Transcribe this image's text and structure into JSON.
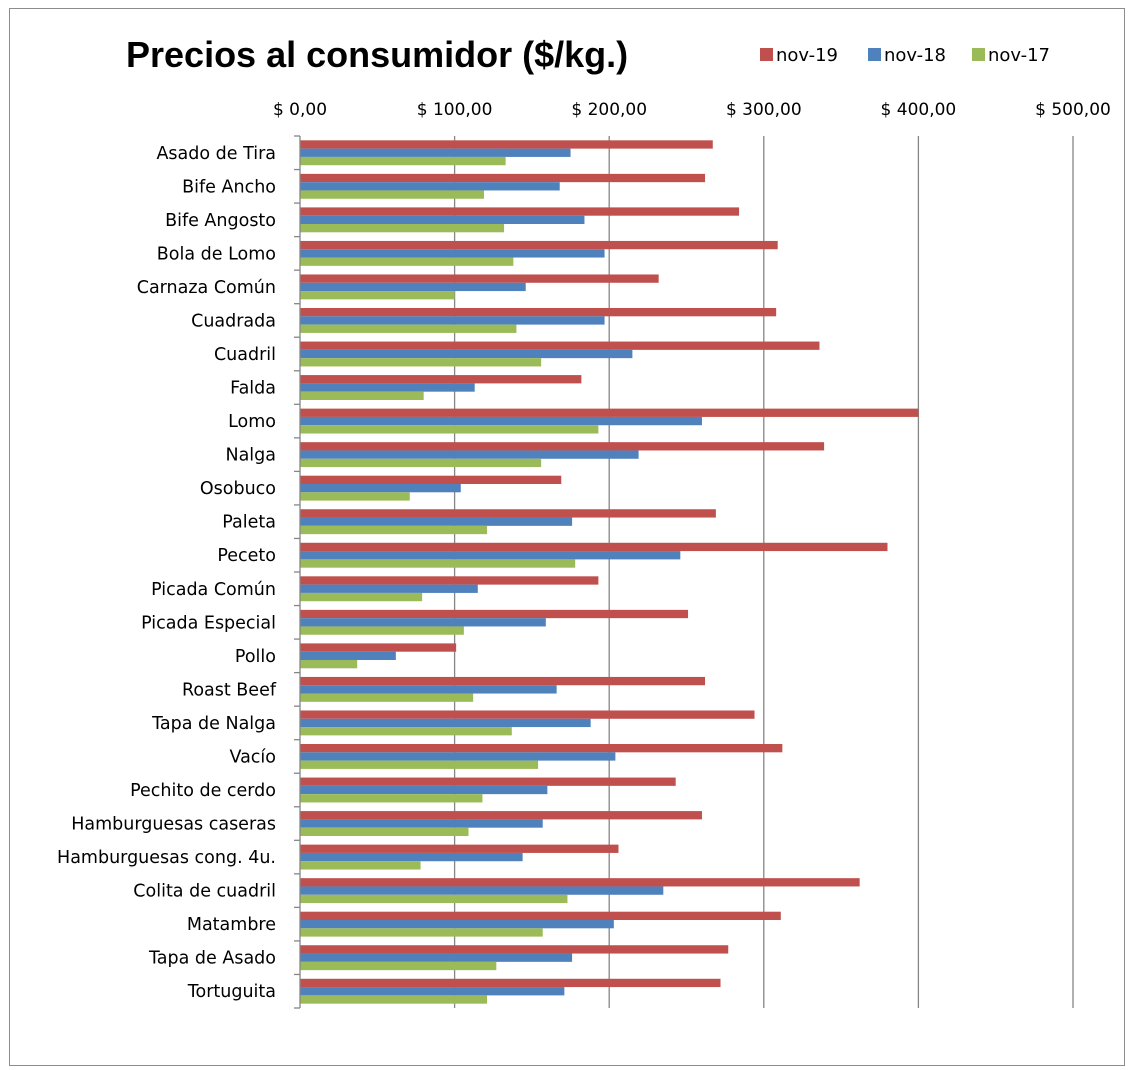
{
  "chart_data": {
    "type": "bar",
    "orientation": "horizontal",
    "title": "Precios al consumidor ($/kg.)",
    "xlabel": "",
    "ylabel": "",
    "xlim": [
      0,
      500
    ],
    "x_ticks": [
      "$ 0,00",
      "$ 100,00",
      "$ 200,00",
      "$ 300,00",
      "$ 400,00",
      "$ 500,00"
    ],
    "x_tick_values": [
      0,
      100,
      200,
      300,
      400,
      500
    ],
    "axis_position": "top",
    "grid": "vertical major gridlines",
    "legend_position": "top-right",
    "categories": [
      "Asado de Tira",
      "Bife Ancho",
      "Bife Angosto",
      "Bola de Lomo",
      "Carnaza Común",
      "Cuadrada",
      "Cuadril",
      "Falda",
      "Lomo",
      "Nalga",
      "Osobuco",
      "Paleta",
      "Peceto",
      "Picada Común",
      "Picada Especial",
      "Pollo",
      "Roast Beef",
      "Tapa de Nalga",
      "Vacío",
      "Pechito de cerdo",
      "Hamburguesas caseras",
      "Hamburguesas cong. 4u.",
      "Colita de cuadril",
      "Matambre",
      "Tapa de Asado",
      "Tortuguita"
    ],
    "series": [
      {
        "name": "nov-19",
        "color": "#c0504d",
        "values": [
          267,
          262,
          284,
          309,
          232,
          308,
          336,
          182,
          400,
          339,
          169,
          269,
          380,
          193,
          251,
          101,
          262,
          294,
          312,
          243,
          260,
          206,
          362,
          311,
          277,
          272
        ]
      },
      {
        "name": "nov-18",
        "color": "#4f81bd",
        "values": [
          175,
          168,
          184,
          197,
          146,
          197,
          215,
          113,
          260,
          219,
          104,
          176,
          246,
          115,
          159,
          62,
          166,
          188,
          204,
          160,
          157,
          144,
          235,
          203,
          176,
          171
        ]
      },
      {
        "name": "nov-17",
        "color": "#9bbb59",
        "values": [
          133,
          119,
          132,
          138,
          100,
          140,
          156,
          80,
          193,
          156,
          71,
          121,
          178,
          79,
          106,
          37,
          112,
          137,
          154,
          118,
          109,
          78,
          173,
          157,
          127,
          121
        ]
      }
    ]
  }
}
